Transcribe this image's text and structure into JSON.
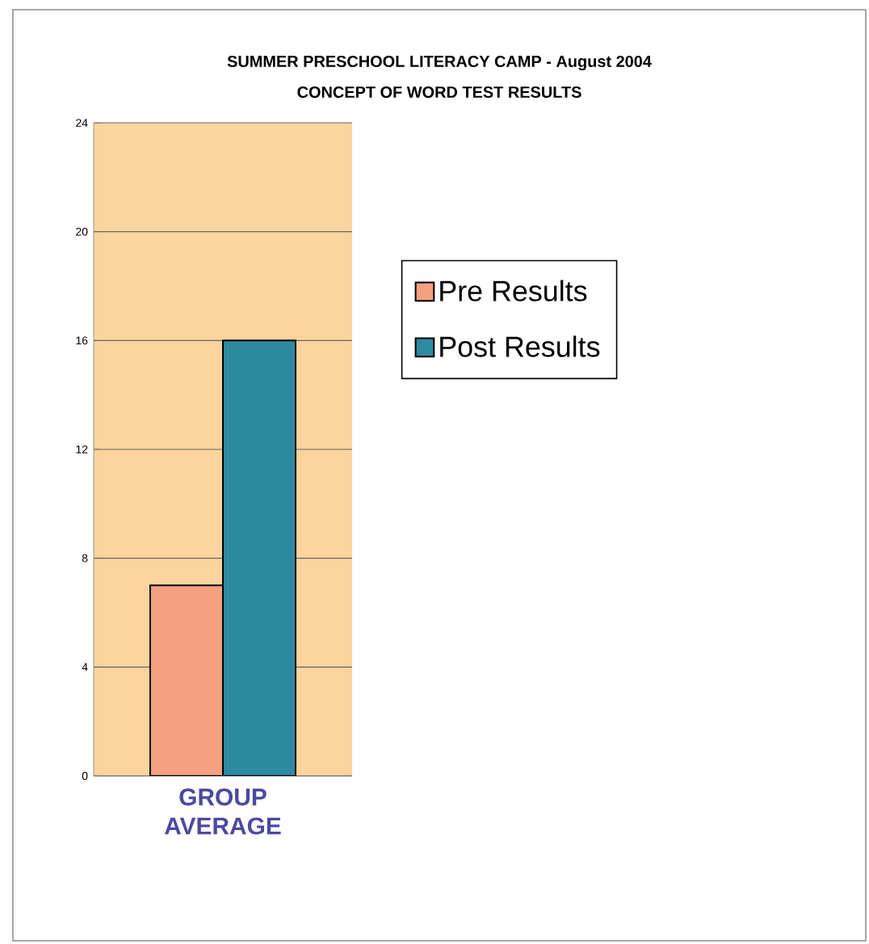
{
  "chart_data": {
    "type": "bar",
    "title": "SUMMER PRESCHOOL LITERACY CAMP - August 2004",
    "subtitle": "CONCEPT OF WORD TEST RESULTS",
    "categories": [
      "GROUP AVERAGE"
    ],
    "series": [
      {
        "name": "Pre Results",
        "color": "#f4a081",
        "values": [
          7
        ]
      },
      {
        "name": "Post Results",
        "color": "#2e8aa0",
        "values": [
          16
        ]
      }
    ],
    "ylim": [
      0,
      24
    ],
    "yticks": [
      0,
      4,
      8,
      12,
      16,
      20,
      24
    ],
    "grid": "y",
    "legend": "right"
  }
}
